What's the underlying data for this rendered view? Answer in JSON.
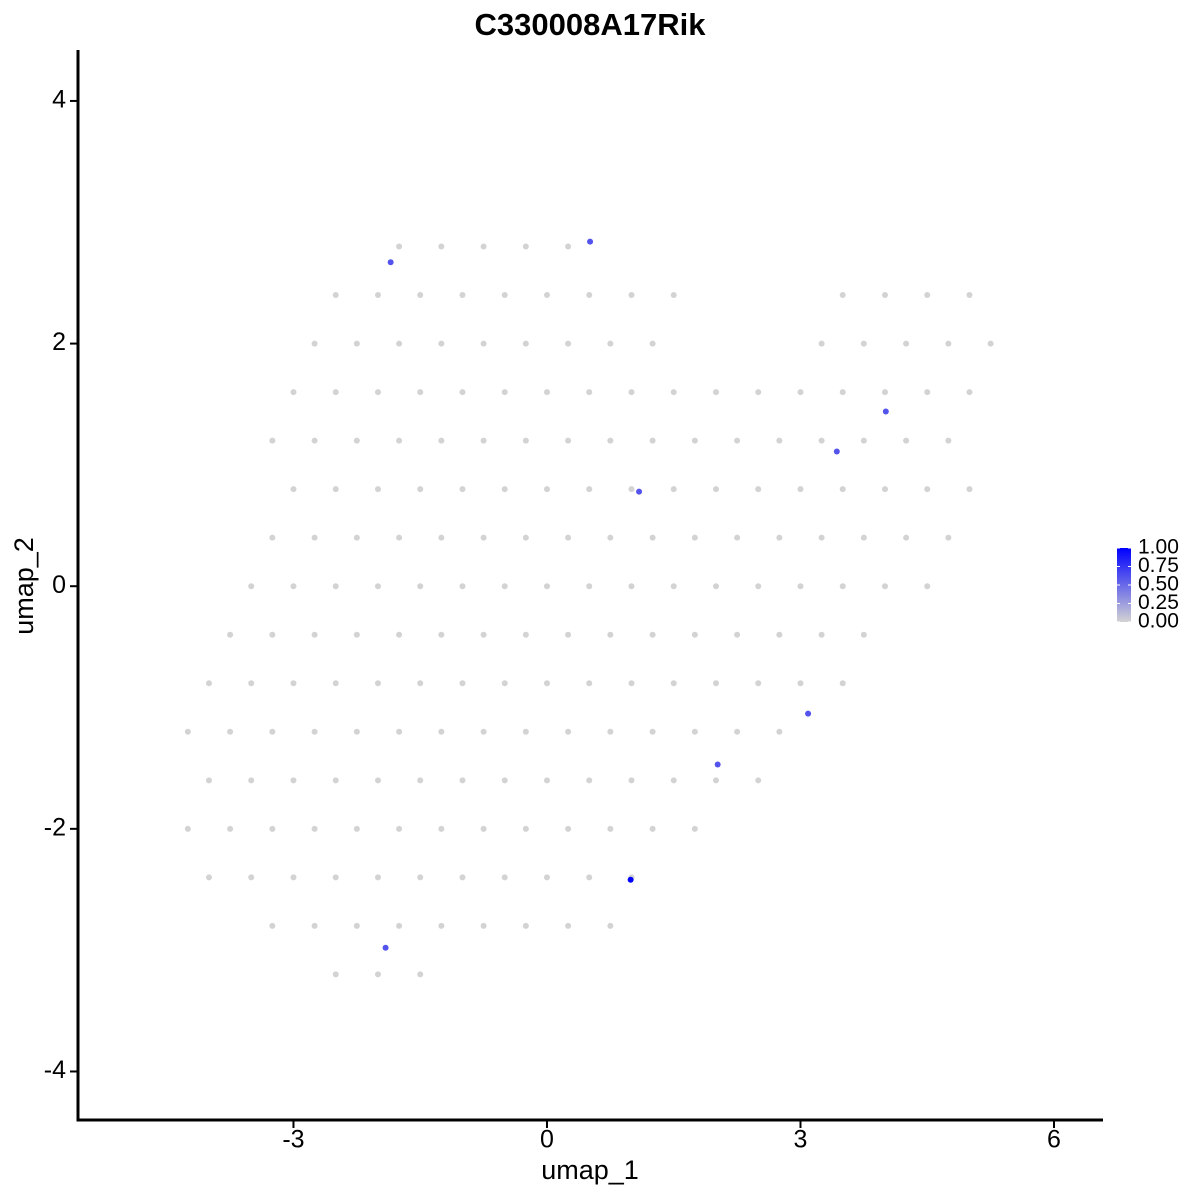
{
  "chart_data": {
    "type": "scatter",
    "title": "C330008A17Rik",
    "x_label": "umap_1",
    "y_label": "umap_2",
    "xlim": [
      -5.55,
      6.58
    ],
    "ylim": [
      -4.4,
      4.42
    ],
    "xticks": [
      -3,
      0,
      3,
      6
    ],
    "yticks": [
      -4,
      -2,
      0,
      2,
      4
    ],
    "color_low": "#d3d3d3",
    "color_high": "#0000ff",
    "color_lim": [
      0,
      1
    ],
    "color_ticks": [
      {
        "value": 0,
        "label": "0.00"
      },
      {
        "value": 0.25,
        "label": "0.25"
      },
      {
        "value": 0.5,
        "label": "0.50"
      },
      {
        "value": 0.75,
        "label": "0.75"
      },
      {
        "value": 1,
        "label": "1.00"
      }
    ],
    "x": [
      -1.75,
      -1.25,
      -0.75,
      -0.25,
      0.25,
      -2.5,
      -2,
      -1.5,
      -1,
      -0.5,
      0,
      0.5,
      1,
      1.5,
      3.5,
      4,
      4.5,
      5,
      -2.75,
      -2.25,
      -1.75,
      -1.25,
      -0.75,
      -0.25,
      0.25,
      0.75,
      1.25,
      3.25,
      3.75,
      4.25,
      4.75,
      5.25,
      -3,
      -2.5,
      -2,
      -1.5,
      -1,
      -0.5,
      0,
      0.5,
      1,
      1.5,
      2,
      2.5,
      3,
      3.5,
      4,
      4.5,
      5,
      -3.25,
      -2.75,
      -2.25,
      -1.75,
      -1.25,
      -0.75,
      -0.25,
      0.25,
      0.75,
      1.25,
      1.75,
      2.25,
      2.75,
      3.25,
      3.75,
      4.25,
      4.75,
      -3,
      -2.5,
      -2,
      -1.5,
      -1,
      -0.5,
      0,
      0.5,
      1,
      1.5,
      2,
      2.5,
      3,
      3.5,
      4,
      4.5,
      5,
      -3.25,
      -2.75,
      -2.25,
      -1.75,
      -1.25,
      -0.75,
      -0.25,
      0.25,
      0.75,
      1.25,
      1.75,
      2.25,
      2.75,
      3.25,
      3.75,
      4.25,
      4.75,
      -3.5,
      -3,
      -2.5,
      -2,
      -1.5,
      -1,
      -0.5,
      0,
      0.5,
      1,
      1.5,
      2,
      2.5,
      3,
      3.5,
      4,
      4.5,
      -3.75,
      -3.25,
      -2.75,
      -2.25,
      -1.75,
      -1.25,
      -0.75,
      -0.25,
      0.25,
      0.75,
      1.25,
      1.75,
      2.25,
      2.75,
      3.25,
      3.75,
      -4,
      -3.5,
      -3,
      -2.5,
      -2,
      -1.5,
      -1,
      -0.5,
      0,
      0.5,
      1,
      1.5,
      2,
      2.5,
      3,
      3.5,
      -4.25,
      -3.75,
      -3.25,
      -2.75,
      -2.25,
      -1.75,
      -1.25,
      -0.75,
      -0.25,
      0.25,
      0.75,
      1.25,
      1.75,
      2.25,
      2.75,
      -4,
      -3.5,
      -3,
      -2.5,
      -2,
      -1.5,
      -1,
      -0.5,
      0,
      0.5,
      1,
      1.5,
      2,
      2.5,
      -4.25,
      -3.75,
      -3.25,
      -2.75,
      -2.25,
      -1.75,
      -1.25,
      -0.75,
      -0.25,
      0.25,
      0.75,
      1.25,
      1.75,
      -4,
      -3.5,
      -3,
      -2.5,
      -2,
      -1.5,
      -1,
      -0.5,
      0,
      0.5,
      1,
      -3.25,
      -2.75,
      -2.25,
      -1.75,
      -1.25,
      -0.75,
      -0.25,
      0.25,
      0.75,
      -2.5,
      -2,
      -1.5,
      -1.85,
      0.51,
      1.09,
      3.43,
      4.01,
      3.09,
      2.02,
      0.99,
      -1.91
    ],
    "y": [
      2.8,
      2.8,
      2.8,
      2.8,
      2.8,
      2.4,
      2.4,
      2.4,
      2.4,
      2.4,
      2.4,
      2.4,
      2.4,
      2.4,
      2.4,
      2.4,
      2.4,
      2.4,
      2,
      2,
      2,
      2,
      2,
      2,
      2,
      2,
      2,
      2,
      2,
      2,
      2,
      2,
      1.6,
      1.6,
      1.6,
      1.6,
      1.6,
      1.6,
      1.6,
      1.6,
      1.6,
      1.6,
      1.6,
      1.6,
      1.6,
      1.6,
      1.6,
      1.6,
      1.6,
      1.2,
      1.2,
      1.2,
      1.2,
      1.2,
      1.2,
      1.2,
      1.2,
      1.2,
      1.2,
      1.2,
      1.2,
      1.2,
      1.2,
      1.2,
      1.2,
      1.2,
      0.8,
      0.8,
      0.8,
      0.8,
      0.8,
      0.8,
      0.8,
      0.8,
      0.8,
      0.8,
      0.8,
      0.8,
      0.8,
      0.8,
      0.8,
      0.8,
      0.8,
      0.4,
      0.4,
      0.4,
      0.4,
      0.4,
      0.4,
      0.4,
      0.4,
      0.4,
      0.4,
      0.4,
      0.4,
      0.4,
      0.4,
      0.4,
      0.4,
      0.4,
      0,
      0,
      0,
      0,
      0,
      0,
      0,
      0,
      0,
      0,
      0,
      0,
      0,
      0,
      0,
      0,
      0,
      -0.4,
      -0.4,
      -0.4,
      -0.4,
      -0.4,
      -0.4,
      -0.4,
      -0.4,
      -0.4,
      -0.4,
      -0.4,
      -0.4,
      -0.4,
      -0.4,
      -0.4,
      -0.4,
      -0.8,
      -0.8,
      -0.8,
      -0.8,
      -0.8,
      -0.8,
      -0.8,
      -0.8,
      -0.8,
      -0.8,
      -0.8,
      -0.8,
      -0.8,
      -0.8,
      -0.8,
      -0.8,
      -1.2,
      -1.2,
      -1.2,
      -1.2,
      -1.2,
      -1.2,
      -1.2,
      -1.2,
      -1.2,
      -1.2,
      -1.2,
      -1.2,
      -1.2,
      -1.2,
      -1.2,
      -1.6,
      -1.6,
      -1.6,
      -1.6,
      -1.6,
      -1.6,
      -1.6,
      -1.6,
      -1.6,
      -1.6,
      -1.6,
      -1.6,
      -1.6,
      -1.6,
      -2,
      -2,
      -2,
      -2,
      -2,
      -2,
      -2,
      -2,
      -2,
      -2,
      -2,
      -2,
      -2,
      -2.4,
      -2.4,
      -2.4,
      -2.4,
      -2.4,
      -2.4,
      -2.4,
      -2.4,
      -2.4,
      -2.4,
      -2.4,
      -2.8,
      -2.8,
      -2.8,
      -2.8,
      -2.8,
      -2.8,
      -2.8,
      -2.8,
      -2.8,
      -3.2,
      -3.2,
      -3.2,
      2.67,
      2.84,
      0.78,
      1.11,
      1.44,
      -1.05,
      -1.47,
      -2.42,
      -2.98
    ],
    "values": [
      0,
      0,
      0,
      0,
      0,
      0,
      0,
      0,
      0,
      0,
      0,
      0,
      0,
      0,
      0,
      0,
      0,
      0,
      0,
      0,
      0,
      0,
      0,
      0,
      0,
      0,
      0,
      0,
      0,
      0,
      0,
      0,
      0,
      0,
      0,
      0,
      0,
      0,
      0,
      0,
      0,
      0,
      0,
      0,
      0,
      0,
      0,
      0,
      0,
      0,
      0,
      0,
      0,
      0,
      0,
      0,
      0,
      0,
      0,
      0,
      0,
      0,
      0,
      0,
      0,
      0,
      0,
      0,
      0,
      0,
      0,
      0,
      0,
      0,
      0,
      0,
      0,
      0,
      0,
      0,
      0,
      0,
      0,
      0,
      0,
      0,
      0,
      0,
      0,
      0,
      0,
      0,
      0,
      0,
      0,
      0,
      0,
      0,
      0,
      0,
      0,
      0,
      0,
      0,
      0,
      0,
      0,
      0,
      0,
      0,
      0,
      0,
      0,
      0,
      0,
      0,
      0,
      0,
      0,
      0,
      0,
      0,
      0,
      0,
      0,
      0,
      0,
      0,
      0,
      0,
      0,
      0,
      0,
      0,
      0,
      0,
      0,
      0,
      0,
      0,
      0,
      0,
      0,
      0,
      0,
      0,
      0,
      0,
      0,
      0,
      0,
      0,
      0,
      0,
      0,
      0,
      0,
      0,
      0,
      0,
      0,
      0,
      0,
      0,
      0,
      0,
      0,
      0,
      0,
      0,
      0,
      0,
      0,
      0,
      0,
      0,
      0,
      0,
      0,
      0,
      0,
      0,
      0,
      0,
      0,
      0,
      0,
      0,
      0,
      0,
      0,
      0,
      0,
      0,
      0,
      0,
      0,
      0,
      0,
      0,
      0,
      0,
      0,
      0,
      0,
      0,
      0,
      0,
      0,
      0,
      0,
      0,
      0,
      0,
      0.6,
      0.6,
      0.6,
      0.6,
      0.6,
      0.6,
      0.6,
      1,
      0.6
    ]
  }
}
